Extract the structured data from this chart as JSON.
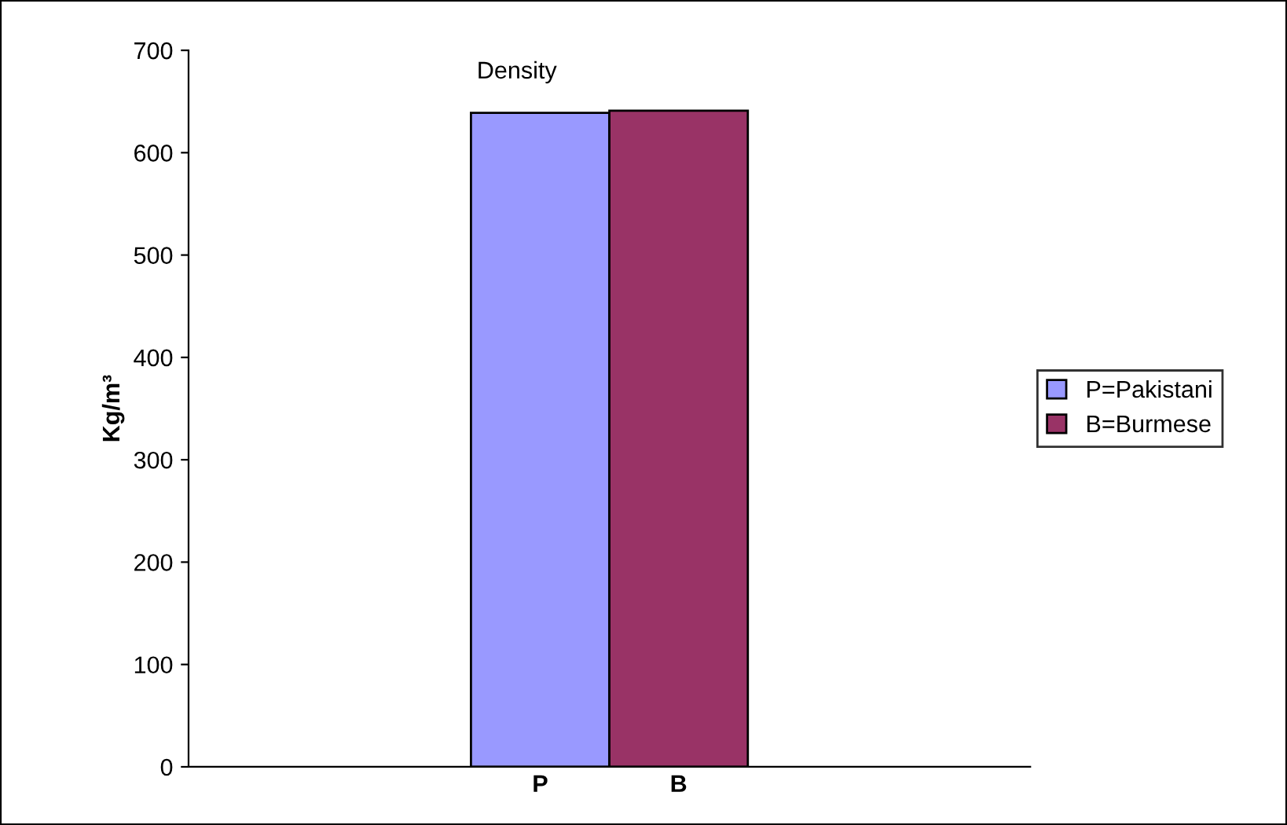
{
  "chart_data": {
    "type": "bar",
    "title": "Density",
    "ylabel": "Kg/m³",
    "categories": [
      "P",
      "B"
    ],
    "series": [
      {
        "name": "P=Pakistani",
        "color": "#9999ff",
        "values": [
          639,
          null
        ]
      },
      {
        "name": "B=Burmese",
        "color": "#993366",
        "values": [
          null,
          641
        ]
      }
    ],
    "ylim": [
      0,
      700
    ],
    "yticks": [
      0,
      100,
      200,
      300,
      400,
      500,
      600,
      700
    ],
    "grid": false,
    "legend": "right"
  }
}
